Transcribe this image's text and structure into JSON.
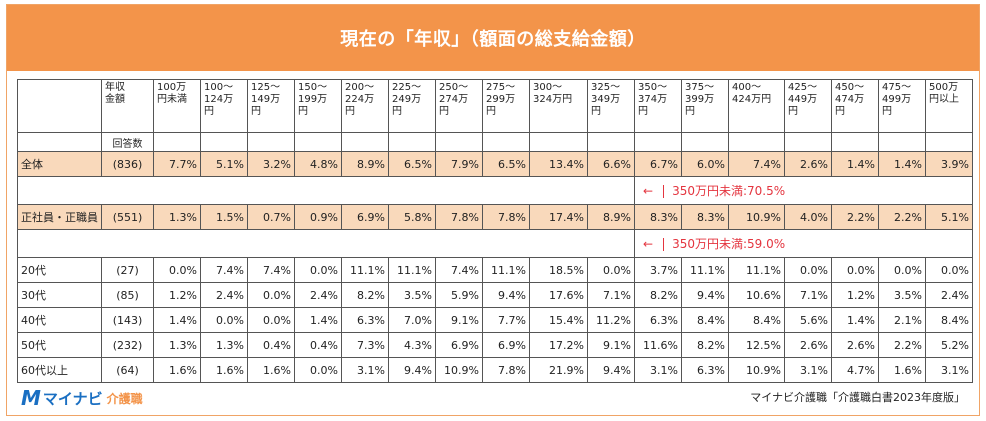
{
  "title": "現在の「年収」（額面の総支給金額）",
  "header": {
    "label": "年収\n金額",
    "response_count_label": "回答数",
    "brackets": [
      "100万\n円未満",
      "100～\n124万\n円",
      "125～\n149万\n円",
      "150～\n199万\n円",
      "200～\n224万\n円",
      "225～\n249万\n円",
      "250～\n274万\n円",
      "275～\n299万\n円",
      "300～\n324万円",
      "325～\n349万\n円",
      "350～\n374万\n円",
      "375～\n399万\n円",
      "400～\n424万円",
      "425～\n449万\n円",
      "450～\n474万\n円",
      "475～\n499万\n円",
      "500万\n円以上"
    ]
  },
  "rows": [
    {
      "label": "全体",
      "count": "(836)",
      "values": [
        "7.7%",
        "5.1%",
        "3.2%",
        "4.8%",
        "8.9%",
        "6.5%",
        "7.9%",
        "6.5%",
        "13.4%",
        "6.6%",
        "6.7%",
        "6.0%",
        "7.4%",
        "2.6%",
        "1.4%",
        "1.4%",
        "3.9%"
      ]
    },
    {
      "label": "正社員・正職員",
      "count": "(551)",
      "values": [
        "1.3%",
        "1.5%",
        "0.7%",
        "0.9%",
        "6.9%",
        "5.8%",
        "7.8%",
        "7.8%",
        "17.4%",
        "8.9%",
        "8.3%",
        "8.3%",
        "10.9%",
        "4.0%",
        "2.2%",
        "2.2%",
        "5.1%"
      ]
    },
    {
      "label": "20代",
      "count": "(27)",
      "values": [
        "0.0%",
        "7.4%",
        "7.4%",
        "0.0%",
        "11.1%",
        "11.1%",
        "7.4%",
        "11.1%",
        "18.5%",
        "0.0%",
        "3.7%",
        "11.1%",
        "11.1%",
        "0.0%",
        "0.0%",
        "0.0%",
        "0.0%"
      ]
    },
    {
      "label": "30代",
      "count": "(85)",
      "values": [
        "1.2%",
        "2.4%",
        "0.0%",
        "2.4%",
        "8.2%",
        "3.5%",
        "5.9%",
        "9.4%",
        "17.6%",
        "7.1%",
        "8.2%",
        "9.4%",
        "10.6%",
        "7.1%",
        "1.2%",
        "3.5%",
        "2.4%"
      ]
    },
    {
      "label": "40代",
      "count": "(143)",
      "values": [
        "1.4%",
        "0.0%",
        "0.0%",
        "1.4%",
        "6.3%",
        "7.0%",
        "9.1%",
        "7.7%",
        "15.4%",
        "11.2%",
        "6.3%",
        "8.4%",
        "8.4%",
        "5.6%",
        "1.4%",
        "2.1%",
        "8.4%"
      ]
    },
    {
      "label": "50代",
      "count": "(232)",
      "values": [
        "1.3%",
        "1.3%",
        "0.4%",
        "0.4%",
        "7.3%",
        "4.3%",
        "6.9%",
        "6.9%",
        "17.2%",
        "9.1%",
        "11.6%",
        "8.2%",
        "12.5%",
        "2.6%",
        "2.6%",
        "2.2%",
        "5.2%"
      ]
    },
    {
      "label": "60代以上",
      "count": "(64)",
      "values": [
        "1.6%",
        "1.6%",
        "1.6%",
        "0.0%",
        "3.1%",
        "9.4%",
        "10.9%",
        "7.8%",
        "21.9%",
        "9.4%",
        "3.1%",
        "6.3%",
        "10.9%",
        "3.1%",
        "4.7%",
        "1.6%",
        "3.1%"
      ]
    }
  ],
  "annotations": {
    "overall": {
      "arrow": "←",
      "text": "350万円未満:70.5%"
    },
    "fulltime": {
      "arrow": "←",
      "text": "350万円未満:59.0%"
    }
  },
  "logo": {
    "mark": "M",
    "text": "マイナビ",
    "sub": "介護職"
  },
  "source": "マイナビ介護職「介護職白書2023年度版」",
  "colors": {
    "title_bg": "#f3944a",
    "highlight_row": "#f9d9bb",
    "annotation": "#e4353f",
    "logo": "#1a6fc2"
  }
}
